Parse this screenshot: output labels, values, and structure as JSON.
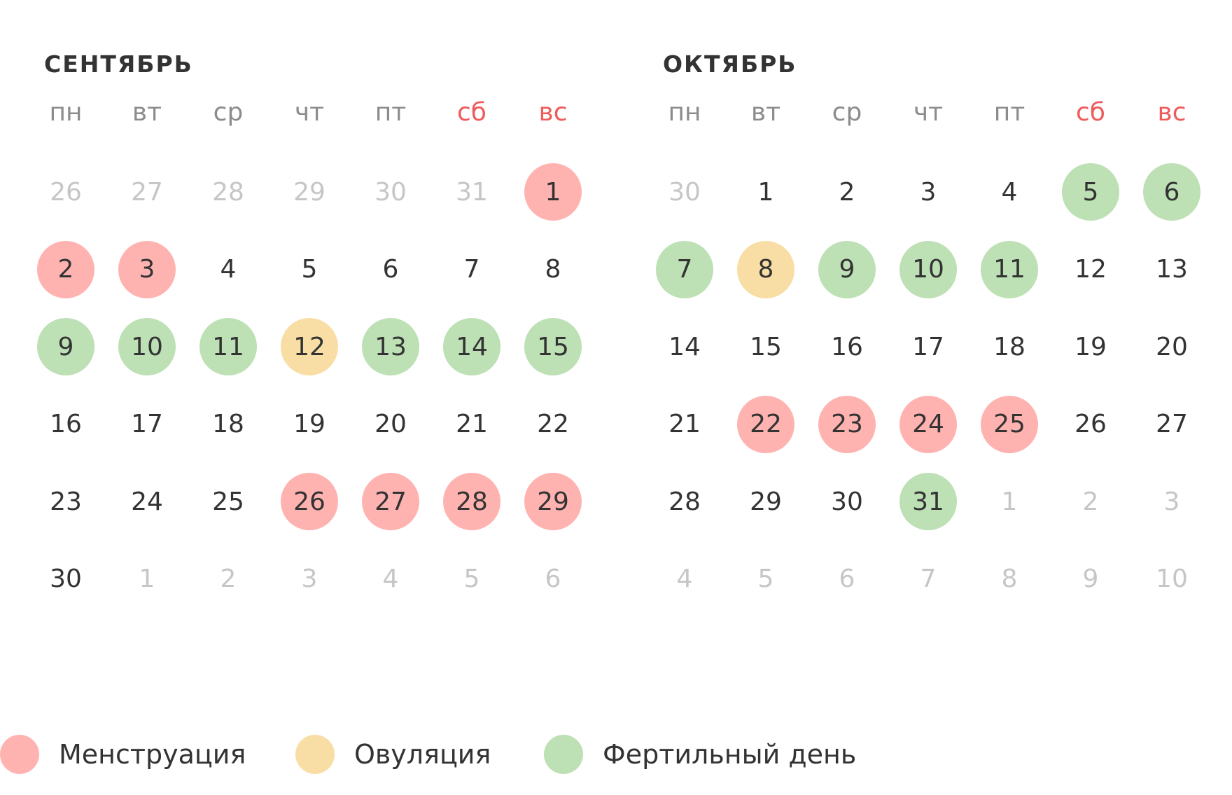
{
  "weekdays": [
    {
      "label": "пн",
      "weekend": false
    },
    {
      "label": "вт",
      "weekend": false
    },
    {
      "label": "ср",
      "weekend": false
    },
    {
      "label": "чт",
      "weekend": false
    },
    {
      "label": "пт",
      "weekend": false
    },
    {
      "label": "сб",
      "weekend": true
    },
    {
      "label": "вс",
      "weekend": true
    }
  ],
  "colors": {
    "menstruation": "#ffb3b1",
    "ovulation": "#f8dea4",
    "fertile": "#bde0b5",
    "weekend_text": "#ef5b5b"
  },
  "months": [
    {
      "title": "Сентябрь",
      "weeks": [
        [
          {
            "d": "26",
            "s": "other"
          },
          {
            "d": "27",
            "s": "other"
          },
          {
            "d": "28",
            "s": "other"
          },
          {
            "d": "29",
            "s": "other"
          },
          {
            "d": "30",
            "s": "other"
          },
          {
            "d": "31",
            "s": "other"
          },
          {
            "d": "1",
            "s": "menstruation"
          }
        ],
        [
          {
            "d": "2",
            "s": "menstruation"
          },
          {
            "d": "3",
            "s": "menstruation"
          },
          {
            "d": "4",
            "s": ""
          },
          {
            "d": "5",
            "s": ""
          },
          {
            "d": "6",
            "s": ""
          },
          {
            "d": "7",
            "s": ""
          },
          {
            "d": "8",
            "s": ""
          }
        ],
        [
          {
            "d": "9",
            "s": "fertile"
          },
          {
            "d": "10",
            "s": "fertile"
          },
          {
            "d": "11",
            "s": "fertile"
          },
          {
            "d": "12",
            "s": "ovulation"
          },
          {
            "d": "13",
            "s": "fertile"
          },
          {
            "d": "14",
            "s": "fertile"
          },
          {
            "d": "15",
            "s": "fertile"
          }
        ],
        [
          {
            "d": "16",
            "s": ""
          },
          {
            "d": "17",
            "s": ""
          },
          {
            "d": "18",
            "s": ""
          },
          {
            "d": "19",
            "s": ""
          },
          {
            "d": "20",
            "s": ""
          },
          {
            "d": "21",
            "s": ""
          },
          {
            "d": "22",
            "s": ""
          }
        ],
        [
          {
            "d": "23",
            "s": ""
          },
          {
            "d": "24",
            "s": ""
          },
          {
            "d": "25",
            "s": ""
          },
          {
            "d": "26",
            "s": "menstruation"
          },
          {
            "d": "27",
            "s": "menstruation"
          },
          {
            "d": "28",
            "s": "menstruation"
          },
          {
            "d": "29",
            "s": "menstruation"
          }
        ],
        [
          {
            "d": "30",
            "s": ""
          },
          {
            "d": "1",
            "s": "other"
          },
          {
            "d": "2",
            "s": "other"
          },
          {
            "d": "3",
            "s": "other"
          },
          {
            "d": "4",
            "s": "other"
          },
          {
            "d": "5",
            "s": "other"
          },
          {
            "d": "6",
            "s": "other"
          }
        ]
      ]
    },
    {
      "title": "Октябрь",
      "weeks": [
        [
          {
            "d": "30",
            "s": "other"
          },
          {
            "d": "1",
            "s": ""
          },
          {
            "d": "2",
            "s": ""
          },
          {
            "d": "3",
            "s": ""
          },
          {
            "d": "4",
            "s": ""
          },
          {
            "d": "5",
            "s": "fertile"
          },
          {
            "d": "6",
            "s": "fertile"
          }
        ],
        [
          {
            "d": "7",
            "s": "fertile"
          },
          {
            "d": "8",
            "s": "ovulation"
          },
          {
            "d": "9",
            "s": "fertile"
          },
          {
            "d": "10",
            "s": "fertile"
          },
          {
            "d": "11",
            "s": "fertile"
          },
          {
            "d": "12",
            "s": ""
          },
          {
            "d": "13",
            "s": ""
          }
        ],
        [
          {
            "d": "14",
            "s": ""
          },
          {
            "d": "15",
            "s": ""
          },
          {
            "d": "16",
            "s": ""
          },
          {
            "d": "17",
            "s": ""
          },
          {
            "d": "18",
            "s": ""
          },
          {
            "d": "19",
            "s": ""
          },
          {
            "d": "20",
            "s": ""
          }
        ],
        [
          {
            "d": "21",
            "s": ""
          },
          {
            "d": "22",
            "s": "menstruation"
          },
          {
            "d": "23",
            "s": "menstruation"
          },
          {
            "d": "24",
            "s": "menstruation"
          },
          {
            "d": "25",
            "s": "menstruation"
          },
          {
            "d": "26",
            "s": ""
          },
          {
            "d": "27",
            "s": ""
          }
        ],
        [
          {
            "d": "28",
            "s": ""
          },
          {
            "d": "29",
            "s": ""
          },
          {
            "d": "30",
            "s": ""
          },
          {
            "d": "31",
            "s": "fertile"
          },
          {
            "d": "1",
            "s": "other"
          },
          {
            "d": "2",
            "s": "other"
          },
          {
            "d": "3",
            "s": "other"
          }
        ],
        [
          {
            "d": "4",
            "s": "other"
          },
          {
            "d": "5",
            "s": "other"
          },
          {
            "d": "6",
            "s": "other"
          },
          {
            "d": "7",
            "s": "other"
          },
          {
            "d": "8",
            "s": "other"
          },
          {
            "d": "9",
            "s": "other"
          },
          {
            "d": "10",
            "s": "other"
          }
        ]
      ]
    }
  ],
  "legend": [
    {
      "label": "Менструация",
      "type": "menstruation"
    },
    {
      "label": "Овуляция",
      "type": "ovulation"
    },
    {
      "label": "Фертильный день",
      "type": "fertile"
    }
  ]
}
